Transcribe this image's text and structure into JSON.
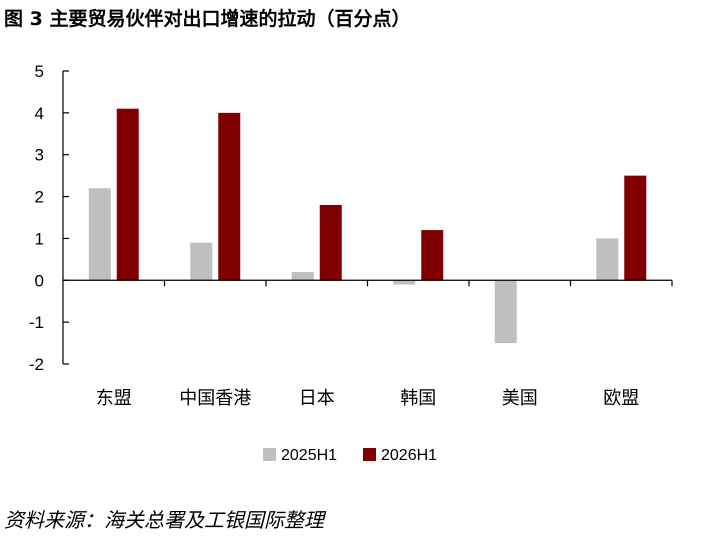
{
  "title": "图 3  主要贸易伙伴对出口增速的拉动（百分点）",
  "source": "资料来源：海关总署及工银国际整理",
  "colors": {
    "s2025": "#BFBFBF",
    "s2026": "#800000",
    "axis": "#000000"
  },
  "chart_data": {
    "type": "bar",
    "title": "图 3  主要贸易伙伴对出口增速的拉动（百分点）",
    "xlabel": "",
    "ylabel": "",
    "categories": [
      "东盟",
      "中国香港",
      "日本",
      "韩国",
      "美国",
      "欧盟"
    ],
    "series": [
      {
        "name": "2025H1",
        "values": [
          2.2,
          0.9,
          0.2,
          -0.1,
          -1.5,
          1.0
        ]
      },
      {
        "name": "2026H1",
        "values": [
          4.1,
          4.0,
          1.8,
          1.2,
          0.0,
          2.5
        ]
      }
    ],
    "ylim": [
      -2,
      5
    ],
    "yticks": [
      "5",
      "4",
      "3",
      "2",
      "1",
      "0",
      "-1",
      "-2"
    ],
    "grid": false,
    "legend": "bottom"
  }
}
